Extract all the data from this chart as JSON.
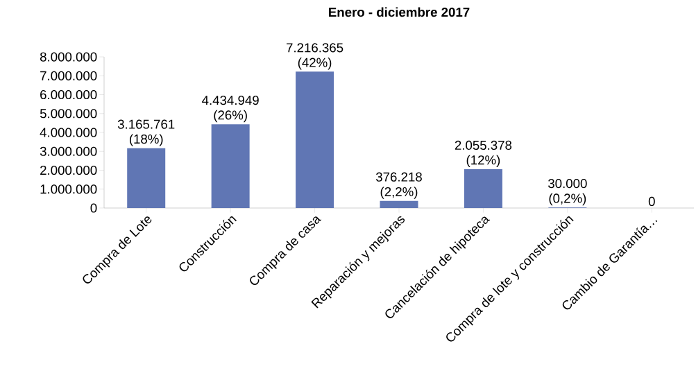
{
  "chart_data": {
    "type": "bar",
    "title": "Enero - diciembre 2017",
    "categories": [
      "Compra de Lote",
      "Construcción",
      "Compra de casa",
      "Reparación y mejoras",
      "Cancelación de hipoteca",
      "Compra de lote y construcción",
      "Cambio de Garantía…"
    ],
    "values": [
      3165761,
      4434949,
      7216365,
      376218,
      2055378,
      30000,
      0
    ],
    "value_labels": [
      "3.165.761 (18%)",
      "4.434.949 (26%)",
      "7.216.365 (42%)",
      "376.218 (2,2%)",
      "2.055.378 (12%)",
      "30.000 (0,2%)",
      "0"
    ],
    "color": "#6076b4",
    "ylim": [
      0,
      8000000
    ],
    "yticks": [
      {
        "value": 0,
        "label": "0"
      },
      {
        "value": 1000000,
        "label": "1.000.000"
      },
      {
        "value": 2000000,
        "label": "2.000.000"
      },
      {
        "value": 3000000,
        "label": "3.000.000"
      },
      {
        "value": 4000000,
        "label": "4.000.000"
      },
      {
        "value": 5000000,
        "label": "5.000.000"
      },
      {
        "value": 6000000,
        "label": "6.000.000"
      },
      {
        "value": 7000000,
        "label": "7.000.000"
      },
      {
        "value": 8000000,
        "label": "8.000.000"
      }
    ]
  }
}
